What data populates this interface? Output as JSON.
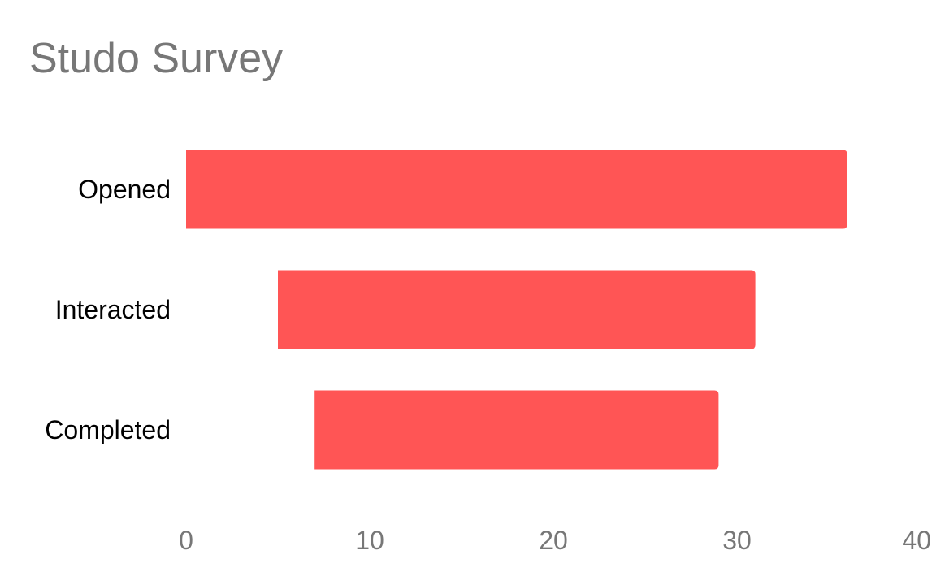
{
  "chart_data": {
    "type": "bar",
    "orientation": "horizontal",
    "title": "Studo Survey",
    "categories": [
      "Opened",
      "Interacted",
      "Completed"
    ],
    "series": [
      {
        "ranges": [
          [
            0,
            36
          ],
          [
            5,
            31
          ],
          [
            7,
            29
          ]
        ]
      }
    ],
    "xlabel": "",
    "ylabel": "",
    "xlim": [
      0,
      40
    ],
    "x_ticks": [
      "0",
      "10",
      "20",
      "30",
      "40"
    ],
    "grid": false,
    "legend": "none",
    "colors": {
      "bar": "#ff5555",
      "title": "#777777",
      "tick_label": "#777777",
      "category_label": "#000000"
    }
  }
}
